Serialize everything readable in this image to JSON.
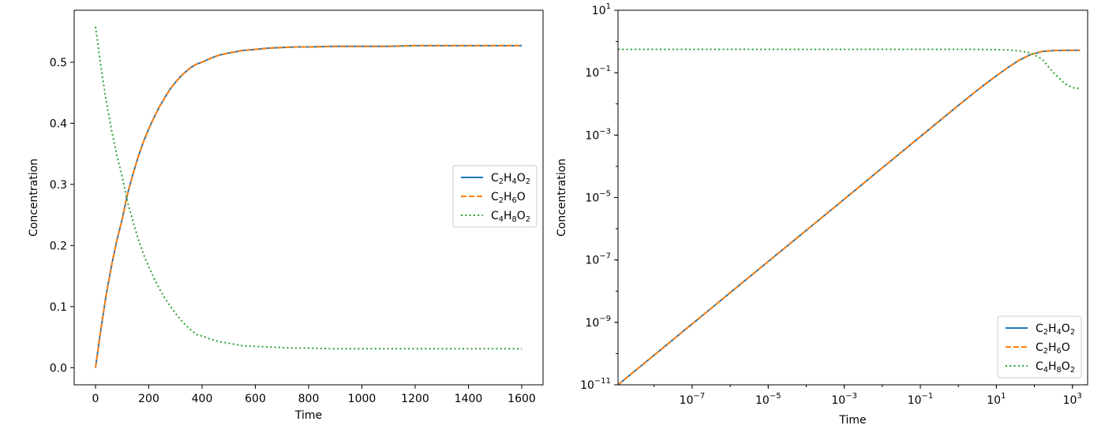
{
  "chart_data": [
    {
      "type": "line",
      "xlabel": "Time",
      "ylabel": "Concentration",
      "xlim": [
        -80,
        1680
      ],
      "ylim": [
        -0.028,
        0.585
      ],
      "xscale": "linear",
      "yscale": "linear",
      "grid": false,
      "legend_position": "center-right",
      "x_ticks": [
        0,
        200,
        400,
        600,
        800,
        1000,
        1200,
        1400,
        1600
      ],
      "x_tick_labels": [
        "0",
        "200",
        "400",
        "600",
        "800",
        "1000",
        "1200",
        "1400",
        "1600"
      ],
      "y_ticks": [
        0.0,
        0.1,
        0.2,
        0.3,
        0.4,
        0.5
      ],
      "y_tick_labels": [
        "0.0",
        "0.1",
        "0.2",
        "0.3",
        "0.4",
        "0.5"
      ],
      "x": [
        0,
        20,
        40,
        60,
        80,
        100,
        120,
        140,
        160,
        180,
        200,
        220,
        240,
        260,
        280,
        300,
        320,
        340,
        360,
        380,
        400,
        430,
        460,
        500,
        550,
        600,
        650,
        700,
        750,
        800,
        900,
        1000,
        1100,
        1200,
        1300,
        1400,
        1500,
        1600
      ],
      "series": [
        {
          "name": "C2H4O2",
          "style": "solid",
          "values": [
            0,
            0.063,
            0.119,
            0.167,
            0.208,
            0.243,
            0.284,
            0.316,
            0.345,
            0.37,
            0.391,
            0.41,
            0.427,
            0.442,
            0.456,
            0.467,
            0.477,
            0.485,
            0.492,
            0.497,
            0.5,
            0.506,
            0.511,
            0.515,
            0.519,
            0.521,
            0.523,
            0.524,
            0.525,
            0.525,
            0.526,
            0.526,
            0.526,
            0.527,
            0.527,
            0.527,
            0.527,
            0.527
          ]
        },
        {
          "name": "C2H6O",
          "style": "dashed",
          "values": [
            0,
            0.063,
            0.119,
            0.167,
            0.208,
            0.243,
            0.284,
            0.316,
            0.345,
            0.37,
            0.391,
            0.41,
            0.427,
            0.442,
            0.456,
            0.467,
            0.477,
            0.485,
            0.492,
            0.497,
            0.5,
            0.506,
            0.511,
            0.515,
            0.519,
            0.521,
            0.523,
            0.524,
            0.525,
            0.525,
            0.526,
            0.526,
            0.526,
            0.527,
            0.527,
            0.527,
            0.527,
            0.527
          ]
        },
        {
          "name": "C4H8O2",
          "style": "dotted",
          "values": [
            0.558,
            0.493,
            0.437,
            0.389,
            0.348,
            0.313,
            0.272,
            0.24,
            0.211,
            0.186,
            0.165,
            0.146,
            0.129,
            0.114,
            0.101,
            0.089,
            0.078,
            0.069,
            0.061,
            0.054,
            0.052,
            0.047,
            0.043,
            0.04,
            0.036,
            0.035,
            0.034,
            0.033,
            0.032,
            0.032,
            0.031,
            0.031,
            0.031,
            0.031,
            0.031,
            0.031,
            0.031,
            0.031
          ]
        }
      ],
      "legend": [
        {
          "base": "C",
          "sub1": "2",
          "mid1": "H",
          "sub2": "4",
          "mid2": "O",
          "sub3": "2"
        },
        {
          "base": "C",
          "sub1": "2",
          "mid1": "H",
          "sub2": "6",
          "mid2": "O",
          "sub3": ""
        },
        {
          "base": "C",
          "sub1": "4",
          "mid1": "H",
          "sub2": "8",
          "mid2": "O",
          "sub3": "2"
        }
      ]
    },
    {
      "type": "line",
      "xlabel": "Time",
      "ylabel": "Concentration",
      "xscale": "log",
      "yscale": "log",
      "xlim_log10": [
        -8.95,
        3.4
      ],
      "ylim_log10": [
        -11,
        1
      ],
      "grid": false,
      "legend_position": "lower-right",
      "x_tick_exponents": [
        -7,
        -5,
        -3,
        -1,
        1,
        3
      ],
      "y_tick_exponents": [
        1,
        -1,
        -3,
        -5,
        -7,
        -9,
        -11
      ],
      "x_log10": [
        -8.95,
        -8,
        -7,
        -6,
        -5,
        -4,
        -3,
        -2,
        -1,
        0,
        0.5,
        1,
        1.3,
        1.6,
        1.9,
        2.2,
        2.5,
        2.8,
        3.0,
        3.2
      ],
      "series": [
        {
          "name": "C2H4O2",
          "style": "solid",
          "y_log10": [
            -11.0,
            -10.05,
            -9.05,
            -8.05,
            -7.05,
            -6.05,
            -5.05,
            -4.05,
            -3.05,
            -2.05,
            -1.56,
            -1.1,
            -0.84,
            -0.6,
            -0.42,
            -0.32,
            -0.29,
            -0.28,
            -0.28,
            -0.28
          ]
        },
        {
          "name": "C2H6O",
          "style": "dashed",
          "y_log10": [
            -11.0,
            -10.05,
            -9.05,
            -8.05,
            -7.05,
            -6.05,
            -5.05,
            -4.05,
            -3.05,
            -2.05,
            -1.56,
            -1.1,
            -0.84,
            -0.6,
            -0.42,
            -0.32,
            -0.29,
            -0.28,
            -0.28,
            -0.28
          ]
        },
        {
          "name": "C4H8O2",
          "style": "dotted",
          "y_log10": [
            -0.254,
            -0.254,
            -0.254,
            -0.254,
            -0.254,
            -0.254,
            -0.254,
            -0.254,
            -0.254,
            -0.254,
            -0.256,
            -0.262,
            -0.272,
            -0.3,
            -0.37,
            -0.56,
            -1.0,
            -1.35,
            -1.48,
            -1.505
          ]
        }
      ],
      "legend": [
        {
          "base": "C",
          "sub1": "2",
          "mid1": "H",
          "sub2": "4",
          "mid2": "O",
          "sub3": "2"
        },
        {
          "base": "C",
          "sub1": "2",
          "mid1": "H",
          "sub2": "6",
          "mid2": "O",
          "sub3": ""
        },
        {
          "base": "C",
          "sub1": "4",
          "mid1": "H",
          "sub2": "8",
          "mid2": "O",
          "sub3": "2"
        }
      ]
    }
  ],
  "colors": {
    "series": [
      "#1f77b4",
      "#ff7f0e",
      "#2ca02c"
    ],
    "axis": "#000000",
    "legend_border": "#cccccc"
  }
}
